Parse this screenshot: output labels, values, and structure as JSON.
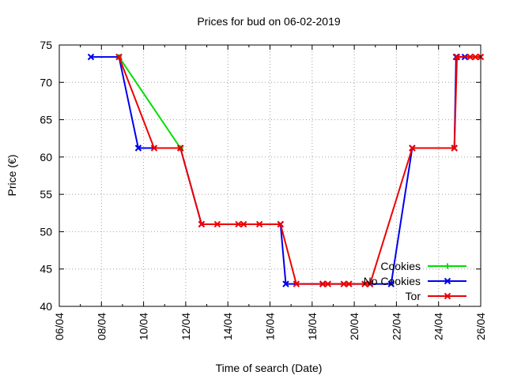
{
  "chart_data": {
    "type": "line",
    "title": "Prices for bud on 06-02-2019",
    "xlabel": "Time of search (Date)",
    "ylabel": "Price (€)",
    "xlim": [
      "2019-04-06",
      "2019-04-26"
    ],
    "ylim": [
      40,
      75
    ],
    "xticks": [
      {
        "label": "06/04",
        "date": "2019-04-06"
      },
      {
        "label": "08/04",
        "date": "2019-04-08"
      },
      {
        "label": "10/04",
        "date": "2019-04-10"
      },
      {
        "label": "12/04",
        "date": "2019-04-12"
      },
      {
        "label": "14/04",
        "date": "2019-04-14"
      },
      {
        "label": "16/04",
        "date": "2019-04-16"
      },
      {
        "label": "18/04",
        "date": "2019-04-18"
      },
      {
        "label": "20/04",
        "date": "2019-04-20"
      },
      {
        "label": "22/04",
        "date": "2019-04-22"
      },
      {
        "label": "24/04",
        "date": "2019-04-24"
      },
      {
        "label": "26/04",
        "date": "2019-04-26"
      }
    ],
    "yticks": [
      40,
      45,
      50,
      55,
      60,
      65,
      70,
      75
    ],
    "grid": true,
    "legend_position": "bottom-right",
    "series": [
      {
        "name": "Cookies",
        "color": "#00dd00",
        "marker": "plus",
        "points": [
          [
            "2019-04-08 20:00",
            73.4
          ],
          [
            "2019-04-11 18:00",
            61.2
          ]
        ]
      },
      {
        "name": "No Cookies",
        "color": "#0000ee",
        "marker": "cross",
        "points": [
          [
            "2019-04-07 12:00",
            73.4
          ],
          [
            "2019-04-08 20:00",
            73.4
          ],
          [
            "2019-04-09 18:00",
            61.2
          ],
          [
            "2019-04-11 18:00",
            61.2
          ],
          [
            "2019-04-12 18:00",
            51.0
          ],
          [
            "2019-04-16 12:00",
            51.0
          ],
          [
            "2019-04-16 18:00",
            43.0
          ],
          [
            "2019-04-18 12:00",
            43.0
          ],
          [
            "2019-04-20 18:00",
            43.0
          ],
          [
            "2019-04-21 18:00",
            43.0
          ],
          [
            "2019-04-22 18:00",
            61.2
          ],
          [
            "2019-04-24 18:00",
            61.2
          ],
          [
            "2019-04-24 20:00",
            73.4
          ],
          [
            "2019-04-25 06:00",
            73.4
          ]
        ]
      },
      {
        "name": "Tor",
        "color": "#ee0000",
        "marker": "cross",
        "points": [
          [
            "2019-04-08 20:00",
            73.4
          ],
          [
            "2019-04-10 12:00",
            61.2
          ],
          [
            "2019-04-11 18:00",
            61.2
          ],
          [
            "2019-04-12 18:00",
            51.0
          ],
          [
            "2019-04-13 12:00",
            51.0
          ],
          [
            "2019-04-14 12:00",
            51.0
          ],
          [
            "2019-04-14 18:00",
            51.0
          ],
          [
            "2019-04-15 12:00",
            51.0
          ],
          [
            "2019-04-16 12:00",
            51.0
          ],
          [
            "2019-04-17 06:00",
            43.0
          ],
          [
            "2019-04-18 12:00",
            43.0
          ],
          [
            "2019-04-18 18:00",
            43.0
          ],
          [
            "2019-04-19 12:00",
            43.0
          ],
          [
            "2019-04-19 18:00",
            43.0
          ],
          [
            "2019-04-20 12:00",
            43.0
          ],
          [
            "2019-04-20 18:00",
            43.0
          ],
          [
            "2019-04-22 18:00",
            61.2
          ],
          [
            "2019-04-24 18:00",
            61.2
          ],
          [
            "2019-04-24 21:00",
            73.4
          ],
          [
            "2019-04-25 12:00",
            73.4
          ],
          [
            "2019-04-25 18:00",
            73.4
          ],
          [
            "2019-04-26 00:00",
            73.4
          ]
        ]
      }
    ]
  }
}
